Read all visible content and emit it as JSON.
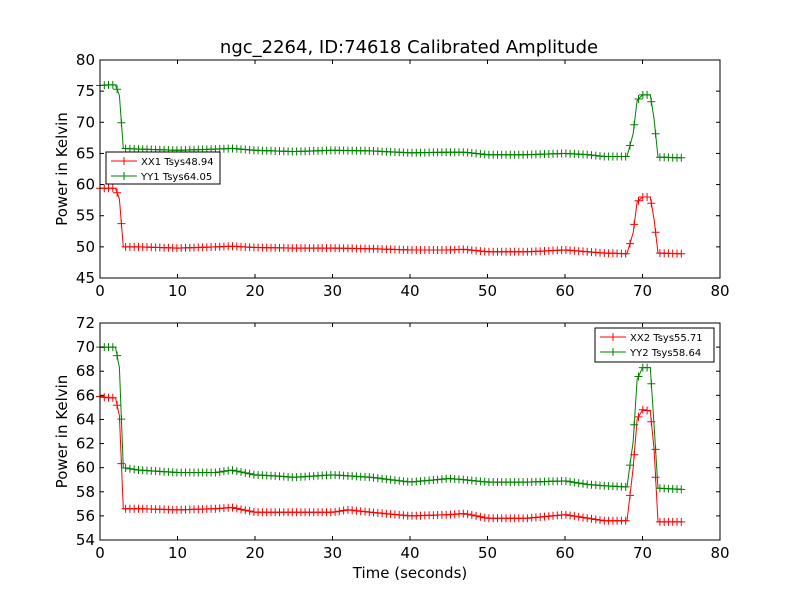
{
  "title": "ngc_2264, ID:74618 Calibrated Amplitude",
  "colors": {
    "xx": "#ff0000",
    "yy": "#008000"
  },
  "chart_data": [
    {
      "type": "line",
      "title": "ngc_2264, ID:74618 Calibrated Amplitude",
      "xlabel": "",
      "ylabel": "Power in Kelvin",
      "xlim": [
        0,
        80
      ],
      "ylim": [
        45,
        80
      ],
      "xticks": [
        0,
        10,
        20,
        30,
        40,
        50,
        60,
        70,
        80
      ],
      "yticks": [
        45,
        50,
        55,
        60,
        65,
        70,
        75,
        80
      ],
      "legend": "center-left",
      "grid": false,
      "marker": "+",
      "series": [
        {
          "name": "XX1 Tsys48.94",
          "color": "#ff0000",
          "points": [
            [
              0,
              59.4
            ],
            [
              1,
              59.4
            ],
            [
              2,
              59.4
            ],
            [
              2.5,
              57.7
            ],
            [
              3,
              50.0
            ],
            [
              5,
              50.0
            ],
            [
              10,
              49.8
            ],
            [
              15,
              50.0
            ],
            [
              17,
              50.1
            ],
            [
              20,
              49.9
            ],
            [
              25,
              49.8
            ],
            [
              30,
              49.8
            ],
            [
              35,
              49.7
            ],
            [
              40,
              49.5
            ],
            [
              45,
              49.5
            ],
            [
              47,
              49.6
            ],
            [
              50,
              49.2
            ],
            [
              55,
              49.2
            ],
            [
              60,
              49.5
            ],
            [
              63,
              49.2
            ],
            [
              65,
              49.0
            ],
            [
              68,
              48.9
            ],
            [
              68.8,
              52.3
            ],
            [
              69.3,
              57.2
            ],
            [
              70,
              58.0
            ],
            [
              71,
              58.0
            ],
            [
              71.5,
              54.4
            ],
            [
              72,
              49.0
            ],
            [
              75,
              48.9
            ]
          ]
        },
        {
          "name": "YY1 Tsys64.05",
          "color": "#008000",
          "points": [
            [
              0,
              75.9
            ],
            [
              1,
              76.0
            ],
            [
              2,
              76.0
            ],
            [
              2.5,
              74.3
            ],
            [
              3,
              65.8
            ],
            [
              5,
              65.7
            ],
            [
              10,
              65.5
            ],
            [
              15,
              65.7
            ],
            [
              17,
              65.8
            ],
            [
              20,
              65.5
            ],
            [
              25,
              65.3
            ],
            [
              30,
              65.5
            ],
            [
              35,
              65.4
            ],
            [
              40,
              65.1
            ],
            [
              45,
              65.2
            ],
            [
              47,
              65.2
            ],
            [
              50,
              64.8
            ],
            [
              55,
              64.8
            ],
            [
              60,
              65.0
            ],
            [
              63,
              64.8
            ],
            [
              65,
              64.5
            ],
            [
              68,
              64.5
            ],
            [
              68.8,
              68.2
            ],
            [
              69.3,
              73.5
            ],
            [
              70,
              74.4
            ],
            [
              71,
              74.4
            ],
            [
              71.5,
              70.5
            ],
            [
              72,
              64.4
            ],
            [
              75,
              64.3
            ]
          ]
        }
      ]
    },
    {
      "type": "line",
      "title": "",
      "xlabel": "Time (seconds)",
      "ylabel": "Power in Kelvin",
      "xlim": [
        0,
        80
      ],
      "ylim": [
        54,
        72
      ],
      "xticks": [
        0,
        10,
        20,
        30,
        40,
        50,
        60,
        70,
        80
      ],
      "yticks": [
        54,
        56,
        58,
        60,
        62,
        64,
        66,
        68,
        70,
        72
      ],
      "legend": "top-right",
      "grid": false,
      "marker": "+",
      "series": [
        {
          "name": "XX2 Tsys55.71",
          "color": "#ff0000",
          "points": [
            [
              0,
              65.9
            ],
            [
              1,
              65.8
            ],
            [
              2,
              65.8
            ],
            [
              2.5,
              64.3
            ],
            [
              3,
              56.6
            ],
            [
              5,
              56.6
            ],
            [
              10,
              56.5
            ],
            [
              15,
              56.6
            ],
            [
              17,
              56.7
            ],
            [
              20,
              56.3
            ],
            [
              25,
              56.3
            ],
            [
              30,
              56.3
            ],
            [
              32,
              56.5
            ],
            [
              35,
              56.3
            ],
            [
              40,
              56.0
            ],
            [
              45,
              56.1
            ],
            [
              47,
              56.2
            ],
            [
              50,
              55.8
            ],
            [
              55,
              55.8
            ],
            [
              60,
              56.1
            ],
            [
              63,
              55.8
            ],
            [
              65,
              55.6
            ],
            [
              68,
              55.6
            ],
            [
              68.8,
              60.0
            ],
            [
              69.3,
              64.0
            ],
            [
              70,
              64.8
            ],
            [
              71,
              64.7
            ],
            [
              71.5,
              61.5
            ],
            [
              72,
              55.5
            ],
            [
              75,
              55.5
            ]
          ]
        },
        {
          "name": "YY2 Tsys58.64",
          "color": "#008000",
          "points": [
            [
              0,
              70.0
            ],
            [
              1,
              70.0
            ],
            [
              2,
              70.0
            ],
            [
              2.5,
              68.3
            ],
            [
              3,
              60.0
            ],
            [
              5,
              59.8
            ],
            [
              10,
              59.6
            ],
            [
              15,
              59.6
            ],
            [
              17,
              59.8
            ],
            [
              20,
              59.4
            ],
            [
              23,
              59.3
            ],
            [
              25,
              59.2
            ],
            [
              30,
              59.4
            ],
            [
              35,
              59.2
            ],
            [
              40,
              58.8
            ],
            [
              45,
              59.1
            ],
            [
              47,
              59.0
            ],
            [
              50,
              58.8
            ],
            [
              55,
              58.8
            ],
            [
              60,
              58.9
            ],
            [
              63,
              58.6
            ],
            [
              65,
              58.5
            ],
            [
              68,
              58.4
            ],
            [
              68.8,
              62.2
            ],
            [
              69.3,
              67.3
            ],
            [
              70,
              68.3
            ],
            [
              71,
              68.3
            ],
            [
              71.5,
              63.5
            ],
            [
              72,
              58.3
            ],
            [
              75,
              58.2
            ]
          ]
        }
      ]
    }
  ]
}
